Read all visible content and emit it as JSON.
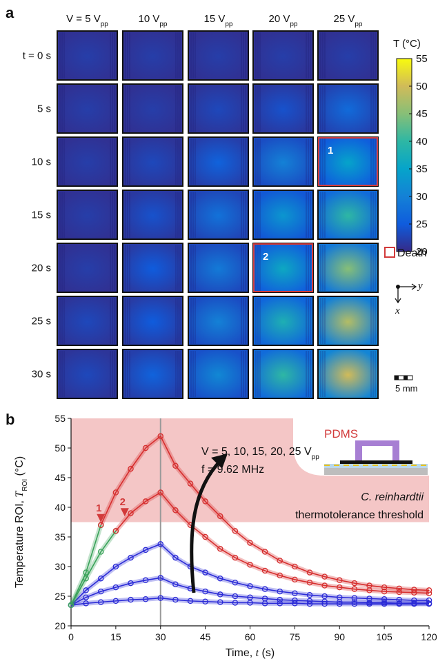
{
  "panel_a": {
    "label": "a",
    "columns": [
      {
        "text": "V = 5 V",
        "sub": "pp"
      },
      {
        "text": "10 V",
        "sub": "pp"
      },
      {
        "text": "15 V",
        "sub": "pp"
      },
      {
        "text": "20 V",
        "sub": "pp"
      },
      {
        "text": "25 V",
        "sub": "pp"
      }
    ],
    "rows": [
      "t = 0 s",
      "5 s",
      "10 s",
      "15 s",
      "20 s",
      "25 s",
      "30 s"
    ],
    "center_temperature": [
      [
        22,
        22,
        22,
        22,
        22
      ],
      [
        22,
        22,
        23,
        24,
        27
      ],
      [
        22,
        23,
        26,
        30,
        35
      ],
      [
        22,
        24,
        28,
        33,
        40
      ],
      [
        22,
        25,
        29,
        36,
        45
      ],
      [
        23,
        25,
        30,
        38,
        48
      ],
      [
        23,
        26,
        31,
        40,
        50
      ]
    ],
    "markers": [
      [
        null,
        null,
        null,
        null,
        null
      ],
      [
        null,
        null,
        null,
        null,
        null
      ],
      [
        null,
        null,
        null,
        null,
        "1"
      ],
      [
        null,
        null,
        null,
        null,
        null
      ],
      [
        null,
        null,
        null,
        "2",
        null
      ],
      [
        null,
        null,
        null,
        null,
        null
      ],
      [
        null,
        null,
        null,
        null,
        null
      ]
    ],
    "colorbar": {
      "label": "T (°C)",
      "range": [
        20,
        55
      ],
      "ticks": [
        20,
        25,
        30,
        35,
        40,
        45,
        50,
        55
      ],
      "colors": [
        "#352a87",
        "#0f5cdd",
        "#1481d6",
        "#06a4ca",
        "#2eb7a4",
        "#87bf77",
        "#d1bb59",
        "#f9fb0e"
      ]
    },
    "legend": "Death",
    "axes": {
      "x": "x",
      "y": "y"
    },
    "scale_bar": "5 mm"
  },
  "chart_data": {
    "type": "line",
    "panel_label": "b",
    "x": [
      0,
      5,
      10,
      15,
      20,
      25,
      30,
      35,
      40,
      45,
      50,
      55,
      60,
      65,
      70,
      75,
      80,
      85,
      90,
      95,
      100,
      105,
      110,
      115,
      120
    ],
    "xlim": [
      0,
      120
    ],
    "xticks": [
      0,
      15,
      30,
      45,
      60,
      75,
      90,
      105,
      120
    ],
    "ylim": [
      20,
      55
    ],
    "yticks": [
      20,
      25,
      30,
      35,
      40,
      45,
      50,
      55
    ],
    "xlabel": {
      "text": "Time, ",
      "var": "t",
      "unit": " (s)"
    },
    "ylabel": {
      "text": "Temperature ROI, ",
      "var": "T",
      "sub": "ROI",
      "unit": " (°C)"
    },
    "series": [
      {
        "color": "#2b2bd6",
        "values": [
          23.5,
          23.8,
          24,
          24.2,
          24.4,
          24.5,
          24.7,
          24.4,
          24.2,
          24.1,
          24,
          23.9,
          23.9,
          23.8,
          23.8,
          23.8,
          23.7,
          23.7,
          23.7,
          23.7,
          23.7,
          23.7,
          23.7,
          23.7,
          23.7
        ]
      },
      {
        "color": "#2b2bd6",
        "values": [
          23.5,
          24.8,
          25.8,
          26.5,
          27.2,
          27.7,
          28.1,
          27,
          26.3,
          25.8,
          25.3,
          25,
          24.8,
          24.6,
          24.4,
          24.3,
          24.2,
          24.1,
          24,
          24,
          23.9,
          23.9,
          23.8,
          23.8,
          23.8
        ]
      },
      {
        "color": "#2b2bd6",
        "values": [
          23.5,
          26,
          28,
          30,
          31.5,
          32.8,
          33.8,
          31.5,
          30,
          29,
          28,
          27.3,
          26.7,
          26.2,
          25.8,
          25.5,
          25.2,
          25,
          24.8,
          24.7,
          24.6,
          24.5,
          24.4,
          24.3,
          24.3
        ]
      },
      {
        "color": "#3aa35a",
        "values": [
          23.5,
          28,
          32.5,
          36,
          null,
          null,
          null,
          null,
          null,
          null,
          null,
          null,
          null,
          null,
          null,
          null,
          null,
          null,
          null,
          null,
          null,
          null,
          null,
          null,
          null
        ]
      },
      {
        "color": "#d62e2e",
        "values": [
          null,
          null,
          null,
          36,
          39,
          41,
          42.5,
          39.5,
          37,
          35,
          33,
          31.5,
          30.3,
          29.3,
          28.5,
          27.8,
          27.3,
          26.8,
          26.5,
          26.2,
          26,
          25.8,
          25.7,
          25.6,
          25.5
        ]
      },
      {
        "color": "#3aa35a",
        "values": [
          23.5,
          29,
          37,
          null,
          null,
          null,
          null,
          null,
          null,
          null,
          null,
          null,
          null,
          null,
          null,
          null,
          null,
          null,
          null,
          null,
          null,
          null,
          null,
          null,
          null
        ]
      },
      {
        "color": "#d62e2e",
        "values": [
          null,
          null,
          37,
          42.5,
          46.5,
          50,
          52,
          47,
          44,
          41,
          38.5,
          36,
          34,
          32.5,
          31,
          30,
          29,
          28.3,
          27.7,
          27.2,
          26.8,
          26.5,
          26.3,
          26.1,
          26
        ]
      }
    ],
    "threshold": 37.5,
    "threshold_color": "#f4c6c6",
    "vline": 30,
    "death_markers": [
      {
        "label": "1",
        "x": 10,
        "y": 37
      },
      {
        "label": "2",
        "x": 18,
        "y": 38
      }
    ],
    "annotations": {
      "voltages": {
        "text": "V = 5, 10, 15, 20, 25 V",
        "sub": "pp"
      },
      "frequency": "f = 9.62 MHz",
      "species": "C. reinhardtii",
      "threshold_label": "thermotolerance threshold",
      "inset": "PDMS"
    }
  }
}
